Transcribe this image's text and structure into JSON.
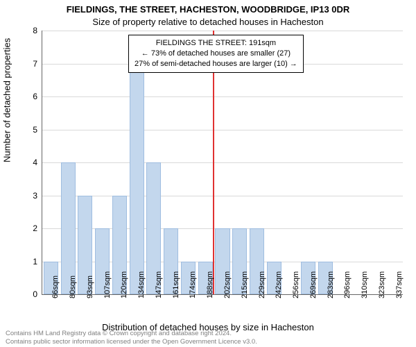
{
  "title_main": "FIELDINGS, THE STREET, HACHESTON, WOODBRIDGE, IP13 0DR",
  "title_sub": "Size of property relative to detached houses in Hacheston",
  "xlabel": "Distribution of detached houses by size in Hacheston",
  "ylabel": "Number of detached properties",
  "chart": {
    "type": "bar",
    "bar_color": "#c3d7ed",
    "bar_border": "#9fbde0",
    "grid_color": "#d9d9d9",
    "background_color": "#ffffff",
    "marker_color": "#e03131",
    "marker_index": 9,
    "ylim": [
      0,
      8
    ],
    "ytick_step": 1,
    "bar_width_ratio": 0.85,
    "categories": [
      "66sqm",
      "80sqm",
      "93sqm",
      "107sqm",
      "120sqm",
      "134sqm",
      "147sqm",
      "161sqm",
      "174sqm",
      "188sqm",
      "202sqm",
      "215sqm",
      "229sqm",
      "242sqm",
      "256sqm",
      "269sqm",
      "283sqm",
      "296sqm",
      "310sqm",
      "323sqm",
      "337sqm"
    ],
    "values": [
      1,
      4,
      3,
      2,
      3,
      7,
      4,
      2,
      1,
      1,
      2,
      2,
      2,
      1,
      0,
      1,
      1,
      0,
      0,
      0,
      0
    ]
  },
  "annotation": {
    "line1": "FIELDINGS THE STREET: 191sqm",
    "line2": "← 73% of detached houses are smaller (27)",
    "line3": "27% of semi-detached houses are larger (10) →"
  },
  "footnote1": "Contains HM Land Registry data © Crown copyright and database right 2024.",
  "footnote2": "Contains public sector information licensed under the Open Government Licence v3.0."
}
